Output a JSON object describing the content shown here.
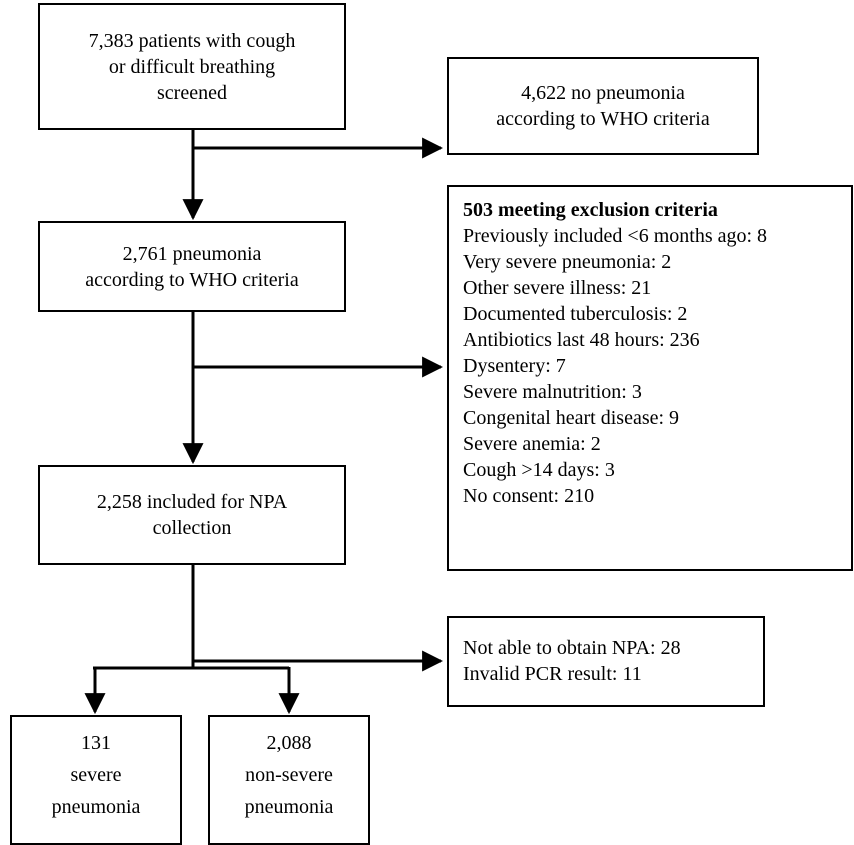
{
  "screened": {
    "lines": [
      "7,383 patients with cough",
      "or difficult breathing",
      "screened"
    ]
  },
  "no_pneumonia": {
    "lines": [
      "4,622 no pneumonia",
      "according to WHO criteria"
    ]
  },
  "pneumonia": {
    "lines": [
      "2,761 pneumonia",
      "according to WHO criteria"
    ]
  },
  "exclusion": {
    "title": "503 meeting exclusion criteria",
    "items": [
      "Previously included <6 months ago: 8",
      "Very severe pneumonia: 2",
      "Other severe illness: 21",
      "Documented tuberculosis: 2",
      "Antibiotics last 48 hours: 236",
      "Dysentery: 7",
      "Severe malnutrition: 3",
      "Congenital heart disease: 9",
      "Severe anemia: 2",
      "Cough >14 days: 3",
      "No consent: 210"
    ]
  },
  "included": {
    "lines": [
      "2,258 included for NPA",
      "collection"
    ]
  },
  "not_obtained": {
    "lines": [
      "Not able to obtain NPA: 28",
      "Invalid PCR result: 11"
    ]
  },
  "severe": {
    "lines": [
      "131",
      "severe",
      "pneumonia"
    ]
  },
  "non_severe": {
    "lines": [
      "2,088",
      "non-severe",
      "pneumonia"
    ]
  }
}
